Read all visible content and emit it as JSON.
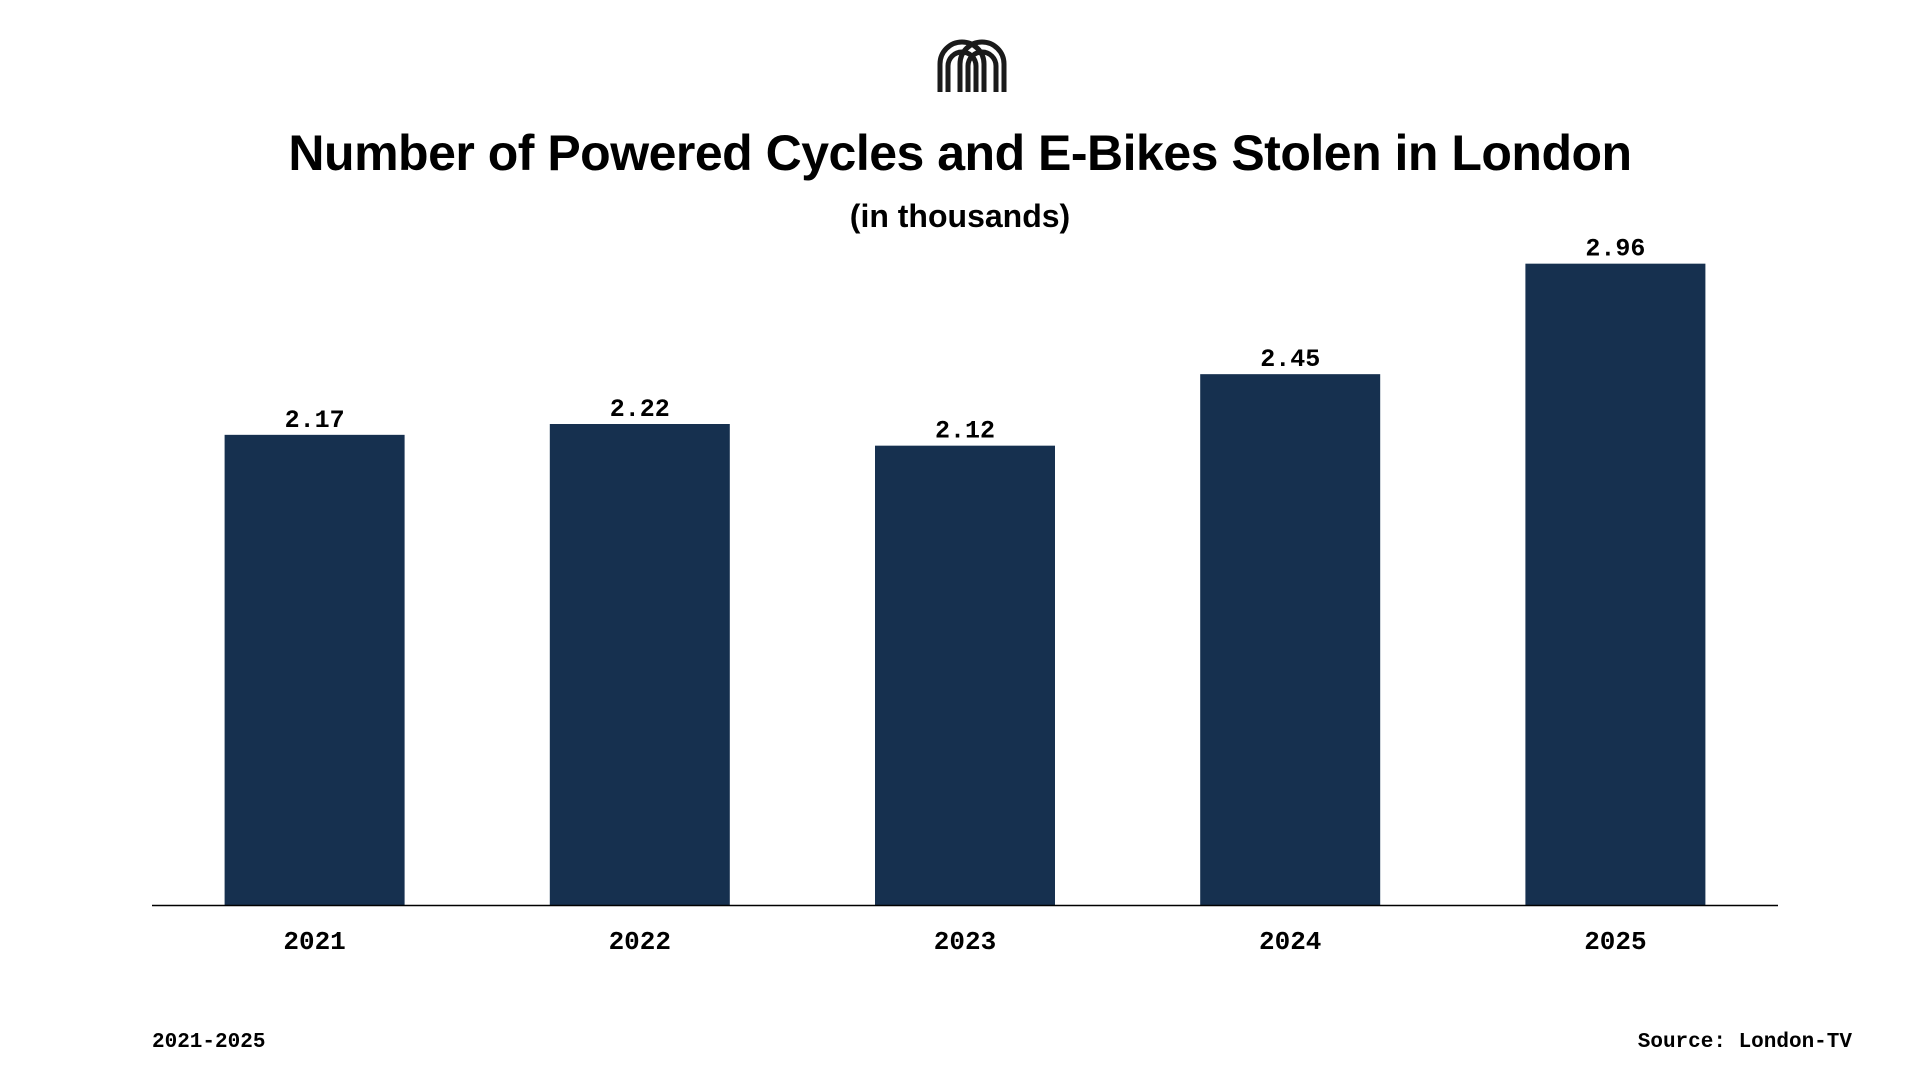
{
  "chart_data": {
    "type": "bar",
    "title": "Number of Powered Cycles and E-Bikes Stolen in London",
    "subtitle": "(in thousands)",
    "categories": [
      "2021",
      "2022",
      "2023",
      "2024",
      "2025"
    ],
    "values": [
      2.17,
      2.22,
      2.12,
      2.45,
      2.96
    ],
    "value_labels": [
      "2.17",
      "2.22",
      "2.12",
      "2.45",
      "2.96"
    ],
    "ylim": [
      0,
      3.0
    ],
    "grid": false,
    "legend": "none",
    "bar_color": "#16304f"
  },
  "footer": {
    "period": "2021-2025",
    "source": "Source: London-TV"
  },
  "logo": {
    "icon": "brand-arch-logo-icon"
  }
}
